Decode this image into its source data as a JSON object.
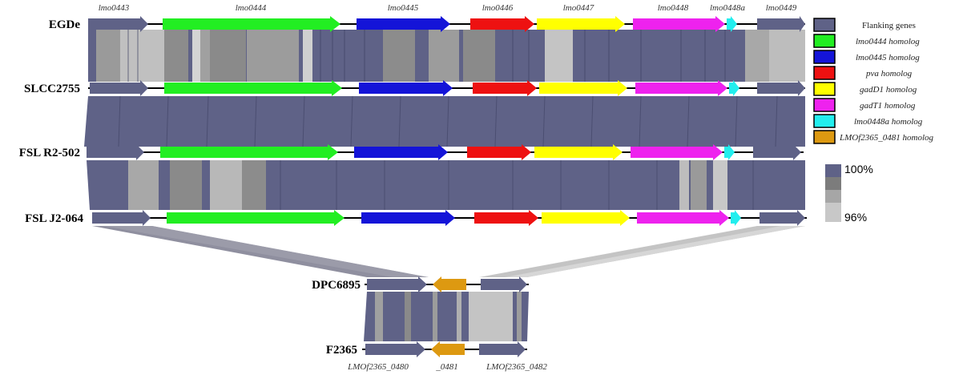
{
  "genomes": [
    {
      "id": "egde",
      "label": "EGDe"
    },
    {
      "id": "slcc2755",
      "label": "SLCC2755"
    },
    {
      "id": "fslr2502",
      "label": "FSL R2-502"
    },
    {
      "id": "fslj2064",
      "label": "FSL J2-064"
    },
    {
      "id": "dpc6895",
      "label": "DPC6895"
    },
    {
      "id": "f2365",
      "label": "F2365"
    }
  ],
  "top_gene_labels": [
    "lmo0443",
    "lmo0444",
    "lmo0445",
    "lmo0446",
    "lmo0447",
    "lmo0448",
    "lmo0448a",
    "lmo0449"
  ],
  "bottom_gene_labels": [
    "LMOf2365_0480",
    "_0481",
    "LMOf2365_0482"
  ],
  "legend": [
    {
      "label": "Flanking genes",
      "color": "#5f6287"
    },
    {
      "label": "lmo0444 homolog",
      "color": "#22ee22"
    },
    {
      "label": "lmo0445 homolog",
      "color": "#1414d8"
    },
    {
      "label": "pva homolog",
      "color": "#ee1111"
    },
    {
      "label": "gadD1 homolog",
      "color": "#ffff00"
    },
    {
      "label": "gadT1 homolog",
      "color": "#ee22ee"
    },
    {
      "label": "lmo0448a homolog",
      "color": "#22eeee"
    },
    {
      "label": "LMOf2365_0481 homolog",
      "color": "#dd9911"
    }
  ],
  "identity_scale": {
    "max_label": "100%",
    "min_label": "96%"
  },
  "colors": {
    "identity_high": "#5f6287",
    "identity_mid": "#8a8a8a",
    "identity_low": "#c4c4c4"
  }
}
